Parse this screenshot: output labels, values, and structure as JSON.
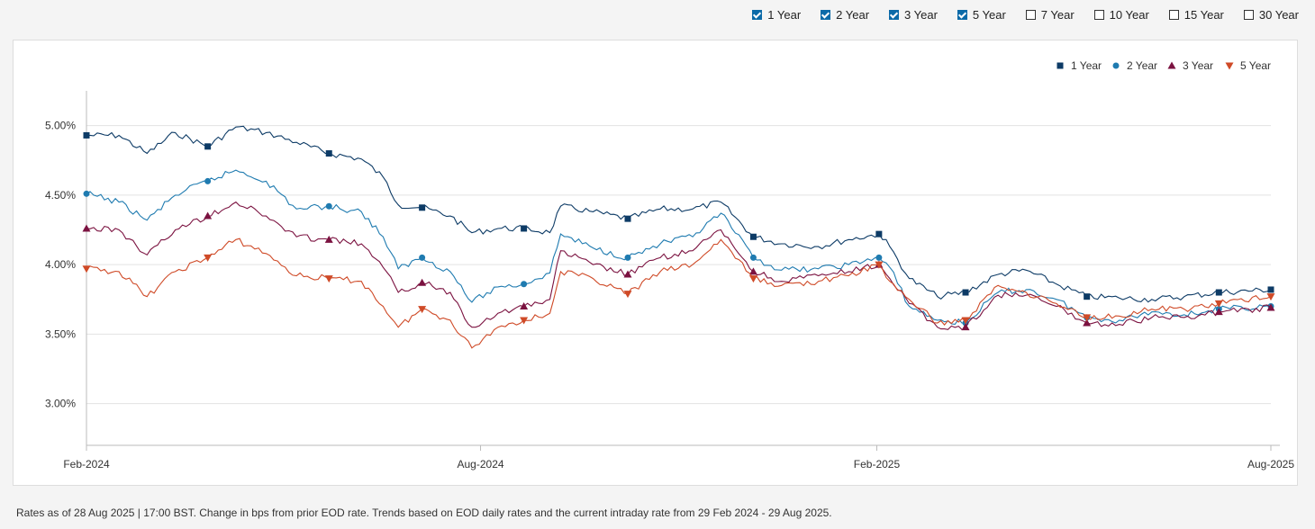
{
  "toggles": [
    {
      "label": "1 Year",
      "checked": true
    },
    {
      "label": "2 Year",
      "checked": true
    },
    {
      "label": "3 Year",
      "checked": true
    },
    {
      "label": "5 Year",
      "checked": true
    },
    {
      "label": "7 Year",
      "checked": false
    },
    {
      "label": "10 Year",
      "checked": false
    },
    {
      "label": "15 Year",
      "checked": false
    },
    {
      "label": "30 Year",
      "checked": false
    }
  ],
  "footnote": "Rates as of 28 Aug 2025 | 17:00 BST. Change in bps from prior EOD rate. Trends based on EOD daily rates and the current intraday rate from 29 Feb 2024 - 29 Aug 2025.",
  "chart_data": {
    "type": "line",
    "x_ticks": [
      "Feb-2024",
      "Aug-2024",
      "Feb-2025",
      "Aug-2025"
    ],
    "x_range": [
      "2024-02-29",
      "2025-08-29"
    ],
    "y_ticks": [
      "3.00%",
      "3.50%",
      "4.00%",
      "4.50%",
      "5.00%"
    ],
    "ylim": [
      2.7,
      5.25
    ],
    "grid": true,
    "legend_position": "top-right",
    "series": [
      {
        "name": "1 Year",
        "color": "#0d3b66",
        "marker": "square",
        "points": [
          [
            "2024-02-29",
            4.93
          ],
          [
            "2024-03-15",
            4.93
          ],
          [
            "2024-03-28",
            4.8
          ],
          [
            "2024-04-10",
            4.95
          ],
          [
            "2024-04-25",
            4.85
          ],
          [
            "2024-05-08",
            4.99
          ],
          [
            "2024-05-22",
            4.95
          ],
          [
            "2024-06-05",
            4.88
          ],
          [
            "2024-06-20",
            4.8
          ],
          [
            "2024-07-05",
            4.76
          ],
          [
            "2024-07-15",
            4.63
          ],
          [
            "2024-07-22",
            4.43
          ],
          [
            "2024-08-02",
            4.41
          ],
          [
            "2024-08-15",
            4.35
          ],
          [
            "2024-08-25",
            4.23
          ],
          [
            "2024-09-06",
            4.26
          ],
          [
            "2024-09-18",
            4.26
          ],
          [
            "2024-09-30",
            4.23
          ],
          [
            "2024-10-05",
            4.42
          ],
          [
            "2024-10-20",
            4.38
          ],
          [
            "2024-11-05",
            4.33
          ],
          [
            "2024-11-20",
            4.4
          ],
          [
            "2024-12-05",
            4.4
          ],
          [
            "2024-12-18",
            4.45
          ],
          [
            "2025-01-02",
            4.2
          ],
          [
            "2025-01-15",
            4.15
          ],
          [
            "2025-02-01",
            4.13
          ],
          [
            "2025-02-15",
            4.18
          ],
          [
            "2025-03-01",
            4.22
          ],
          [
            "2025-03-06",
            4.13
          ],
          [
            "2025-03-15",
            3.9
          ],
          [
            "2025-03-28",
            3.77
          ],
          [
            "2025-04-10",
            3.8
          ],
          [
            "2025-04-25",
            3.93
          ],
          [
            "2025-05-08",
            3.96
          ],
          [
            "2025-05-22",
            3.86
          ],
          [
            "2025-06-05",
            3.77
          ],
          [
            "2025-06-20",
            3.76
          ],
          [
            "2025-07-05",
            3.75
          ],
          [
            "2025-07-20",
            3.77
          ],
          [
            "2025-08-05",
            3.8
          ],
          [
            "2025-08-29",
            3.82
          ]
        ]
      },
      {
        "name": "2 Year",
        "color": "#1f7bb0",
        "marker": "circle",
        "points": [
          [
            "2024-02-29",
            4.51
          ],
          [
            "2024-03-15",
            4.45
          ],
          [
            "2024-03-28",
            4.32
          ],
          [
            "2024-04-10",
            4.5
          ],
          [
            "2024-04-25",
            4.6
          ],
          [
            "2024-05-08",
            4.68
          ],
          [
            "2024-05-22",
            4.6
          ],
          [
            "2024-06-05",
            4.4
          ],
          [
            "2024-06-20",
            4.42
          ],
          [
            "2024-07-05",
            4.38
          ],
          [
            "2024-07-15",
            4.2
          ],
          [
            "2024-07-22",
            3.97
          ],
          [
            "2024-08-02",
            4.05
          ],
          [
            "2024-08-15",
            3.95
          ],
          [
            "2024-08-25",
            3.73
          ],
          [
            "2024-09-06",
            3.84
          ],
          [
            "2024-09-18",
            3.86
          ],
          [
            "2024-09-30",
            3.94
          ],
          [
            "2024-10-05",
            4.22
          ],
          [
            "2024-10-20",
            4.12
          ],
          [
            "2024-11-05",
            4.05
          ],
          [
            "2024-11-20",
            4.15
          ],
          [
            "2024-12-05",
            4.2
          ],
          [
            "2024-12-18",
            4.37
          ],
          [
            "2025-01-02",
            4.05
          ],
          [
            "2025-01-15",
            3.96
          ],
          [
            "2025-02-01",
            3.97
          ],
          [
            "2025-02-15",
            4.0
          ],
          [
            "2025-03-01",
            4.05
          ],
          [
            "2025-03-06",
            3.98
          ],
          [
            "2025-03-15",
            3.7
          ],
          [
            "2025-03-28",
            3.6
          ],
          [
            "2025-04-10",
            3.58
          ],
          [
            "2025-04-25",
            3.8
          ],
          [
            "2025-05-08",
            3.82
          ],
          [
            "2025-05-22",
            3.75
          ],
          [
            "2025-06-05",
            3.62
          ],
          [
            "2025-06-20",
            3.6
          ],
          [
            "2025-07-05",
            3.66
          ],
          [
            "2025-07-20",
            3.64
          ],
          [
            "2025-08-05",
            3.68
          ],
          [
            "2025-08-29",
            3.7
          ]
        ]
      },
      {
        "name": "3 Year",
        "color": "#7b1240",
        "marker": "triangle-up",
        "points": [
          [
            "2024-02-29",
            4.26
          ],
          [
            "2024-03-15",
            4.25
          ],
          [
            "2024-03-28",
            4.07
          ],
          [
            "2024-04-10",
            4.25
          ],
          [
            "2024-04-25",
            4.35
          ],
          [
            "2024-05-08",
            4.45
          ],
          [
            "2024-05-22",
            4.35
          ],
          [
            "2024-06-05",
            4.2
          ],
          [
            "2024-06-20",
            4.18
          ],
          [
            "2024-07-05",
            4.15
          ],
          [
            "2024-07-15",
            3.98
          ],
          [
            "2024-07-22",
            3.8
          ],
          [
            "2024-08-02",
            3.87
          ],
          [
            "2024-08-15",
            3.8
          ],
          [
            "2024-08-25",
            3.55
          ],
          [
            "2024-09-06",
            3.65
          ],
          [
            "2024-09-18",
            3.7
          ],
          [
            "2024-09-30",
            3.75
          ],
          [
            "2024-10-05",
            4.1
          ],
          [
            "2024-10-20",
            4.0
          ],
          [
            "2024-11-05",
            3.93
          ],
          [
            "2024-11-20",
            4.05
          ],
          [
            "2024-12-05",
            4.1
          ],
          [
            "2024-12-18",
            4.25
          ],
          [
            "2025-01-02",
            3.95
          ],
          [
            "2025-01-15",
            3.88
          ],
          [
            "2025-02-01",
            3.92
          ],
          [
            "2025-02-15",
            3.95
          ],
          [
            "2025-03-01",
            4.0
          ],
          [
            "2025-03-06",
            3.9
          ],
          [
            "2025-03-15",
            3.72
          ],
          [
            "2025-03-28",
            3.55
          ],
          [
            "2025-04-10",
            3.55
          ],
          [
            "2025-04-25",
            3.78
          ],
          [
            "2025-05-08",
            3.78
          ],
          [
            "2025-05-22",
            3.7
          ],
          [
            "2025-06-05",
            3.58
          ],
          [
            "2025-06-20",
            3.57
          ],
          [
            "2025-07-05",
            3.62
          ],
          [
            "2025-07-20",
            3.62
          ],
          [
            "2025-08-05",
            3.66
          ],
          [
            "2025-08-29",
            3.69
          ]
        ]
      },
      {
        "name": "5 Year",
        "color": "#cf4a27",
        "marker": "triangle-down",
        "points": [
          [
            "2024-02-29",
            3.97
          ],
          [
            "2024-03-15",
            3.95
          ],
          [
            "2024-03-28",
            3.77
          ],
          [
            "2024-04-10",
            3.95
          ],
          [
            "2024-04-25",
            4.05
          ],
          [
            "2024-05-08",
            4.18
          ],
          [
            "2024-05-22",
            4.08
          ],
          [
            "2024-06-05",
            3.92
          ],
          [
            "2024-06-20",
            3.9
          ],
          [
            "2024-07-05",
            3.88
          ],
          [
            "2024-07-15",
            3.7
          ],
          [
            "2024-07-22",
            3.55
          ],
          [
            "2024-08-02",
            3.68
          ],
          [
            "2024-08-15",
            3.6
          ],
          [
            "2024-08-25",
            3.4
          ],
          [
            "2024-09-06",
            3.55
          ],
          [
            "2024-09-18",
            3.6
          ],
          [
            "2024-09-30",
            3.65
          ],
          [
            "2024-10-05",
            3.95
          ],
          [
            "2024-10-20",
            3.9
          ],
          [
            "2024-11-05",
            3.79
          ],
          [
            "2024-11-20",
            3.95
          ],
          [
            "2024-12-05",
            4.0
          ],
          [
            "2024-12-18",
            4.18
          ],
          [
            "2025-01-02",
            3.9
          ],
          [
            "2025-01-15",
            3.85
          ],
          [
            "2025-02-01",
            3.88
          ],
          [
            "2025-02-15",
            3.92
          ],
          [
            "2025-03-01",
            4.0
          ],
          [
            "2025-03-06",
            3.88
          ],
          [
            "2025-03-15",
            3.75
          ],
          [
            "2025-03-28",
            3.58
          ],
          [
            "2025-04-10",
            3.6
          ],
          [
            "2025-04-25",
            3.85
          ],
          [
            "2025-05-08",
            3.8
          ],
          [
            "2025-05-22",
            3.72
          ],
          [
            "2025-06-05",
            3.62
          ],
          [
            "2025-06-20",
            3.63
          ],
          [
            "2025-07-05",
            3.68
          ],
          [
            "2025-07-20",
            3.68
          ],
          [
            "2025-08-05",
            3.72
          ],
          [
            "2025-08-29",
            3.77
          ]
        ]
      }
    ]
  }
}
